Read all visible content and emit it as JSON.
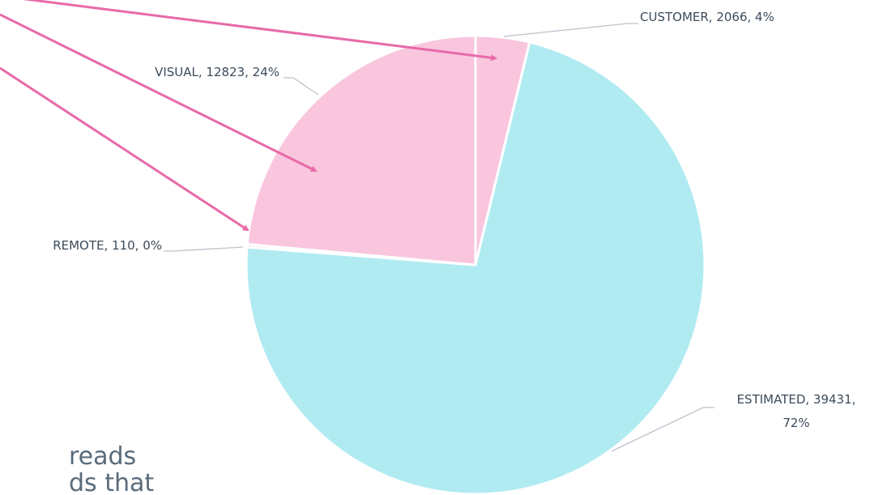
{
  "chart_data": {
    "type": "pie",
    "values": [
      2066,
      39431,
      110,
      12823
    ],
    "value_labels": [
      "CUSTOMER, 2066, 4%",
      "ESTIMATED, 39431, 72%",
      "REMOTE, 110, 0%",
      "VISUAL, 12823, 24%"
    ],
    "colors": [
      "#f9c6de",
      "#b1ebf2",
      "#f9c6de",
      "#f9c6de"
    ],
    "annotations": [
      "reads",
      "ds that"
    ]
  }
}
